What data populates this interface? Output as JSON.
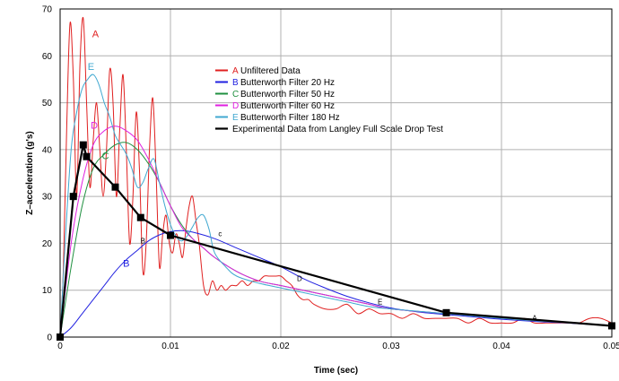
{
  "chart_data": {
    "type": "line",
    "xlabel": "Time (sec)",
    "ylabel": "Z–acceleration (g's)",
    "xlim": [
      0,
      0.05
    ],
    "ylim": [
      0,
      70
    ],
    "x_ticks": [
      "0",
      "0.01",
      "0.02",
      "0.03",
      "0.04",
      "0.05"
    ],
    "y_ticks": [
      "0",
      "10",
      "20",
      "30",
      "40",
      "50",
      "60",
      "70"
    ],
    "grid": true,
    "legend_position": "top-center",
    "series": [
      {
        "letter": "A",
        "name": "Unfiltered Data",
        "color": "#e02020",
        "width": 1,
        "x": [
          0,
          0.0003,
          0.0006,
          0.0009,
          0.0012,
          0.0015,
          0.0018,
          0.0021,
          0.0024,
          0.0027,
          0.003,
          0.0033,
          0.0036,
          0.0039,
          0.0042,
          0.0045,
          0.0048,
          0.0051,
          0.0054,
          0.0057,
          0.006,
          0.0063,
          0.0066,
          0.0069,
          0.0072,
          0.0075,
          0.0078,
          0.0081,
          0.0084,
          0.0087,
          0.009,
          0.0093,
          0.0096,
          0.0099,
          0.0102,
          0.0105,
          0.0108,
          0.0111,
          0.0114,
          0.0117,
          0.012,
          0.0123,
          0.0126,
          0.013,
          0.0134,
          0.0138,
          0.0142,
          0.0146,
          0.015,
          0.0155,
          0.016,
          0.0165,
          0.017,
          0.0175,
          0.018,
          0.0185,
          0.019,
          0.0195,
          0.02,
          0.0205,
          0.021,
          0.0215,
          0.022,
          0.0225,
          0.023,
          0.024,
          0.025,
          0.026,
          0.027,
          0.028,
          0.029,
          0.03,
          0.031,
          0.032,
          0.033,
          0.034,
          0.035,
          0.036,
          0.037,
          0.038,
          0.039,
          0.04,
          0.041,
          0.042,
          0.043,
          0.044,
          0.045,
          0.046,
          0.047,
          0.048,
          0.049,
          0.05
        ],
        "y": [
          0,
          15,
          45,
          67,
          55,
          30,
          58,
          68,
          50,
          32,
          42,
          50,
          40,
          30,
          40,
          57,
          50,
          30,
          44,
          56,
          40,
          20,
          30,
          48,
          35,
          14,
          20,
          40,
          51,
          35,
          15,
          22,
          26,
          20,
          18,
          22,
          20,
          17,
          23,
          28,
          30,
          25,
          20,
          11,
          9,
          12,
          10,
          11,
          10,
          11,
          11,
          12,
          11,
          12,
          12,
          13,
          13,
          13,
          13,
          12,
          11,
          9,
          8,
          8,
          7,
          6,
          6,
          7,
          5,
          6,
          5,
          5,
          4,
          5,
          4,
          4,
          4,
          4,
          3,
          4,
          3,
          3,
          3,
          4,
          3,
          3,
          3,
          3,
          3,
          4,
          4,
          3
        ],
        "label_points": [
          [
            0.0032,
            64
          ],
          [
            0.043,
            3.5
          ]
        ]
      },
      {
        "letter": "B",
        "name": "Butterworth Filter 20 Hz",
        "color": "#2020e0",
        "width": 1,
        "x": [
          0,
          0.001,
          0.002,
          0.003,
          0.004,
          0.005,
          0.006,
          0.007,
          0.008,
          0.009,
          0.01,
          0.011,
          0.012,
          0.014,
          0.016,
          0.018,
          0.02,
          0.022,
          0.024,
          0.026,
          0.028,
          0.03,
          0.032,
          0.034,
          0.036,
          0.038,
          0.04,
          0.042,
          0.044,
          0.046,
          0.048,
          0.05
        ],
        "y": [
          0,
          2,
          5,
          8,
          11,
          14,
          16.5,
          18.5,
          20.5,
          21.8,
          22.5,
          22.7,
          22.4,
          21,
          19,
          17,
          15,
          12.5,
          10.5,
          8.7,
          7.3,
          6.2,
          5.5,
          5,
          4.6,
          4.2,
          3.8,
          3.5,
          3.2,
          3,
          2.7,
          2.5
        ],
        "label_points": [
          [
            0.006,
            15
          ],
          [
            0.0075,
            20
          ]
        ]
      },
      {
        "letter": "C",
        "name": "Butterworth Filter 50 Hz",
        "color": "#209040",
        "width": 1,
        "x": [
          0,
          0.001,
          0.002,
          0.003,
          0.004,
          0.005,
          0.006,
          0.007,
          0.008,
          0.009,
          0.01,
          0.011,
          0.012,
          0.013,
          0.014,
          0.016,
          0.018,
          0.02,
          0.022,
          0.024,
          0.026,
          0.028,
          0.03,
          0.035,
          0.04,
          0.045,
          0.05
        ],
        "y": [
          0,
          15,
          28,
          36,
          39,
          41,
          41.5,
          40,
          37,
          33,
          28,
          24,
          21,
          19,
          17,
          14,
          12,
          11,
          10,
          9,
          8,
          7,
          6,
          5,
          4,
          3.2,
          2.5
        ],
        "label_points": [
          [
            0.0041,
            38
          ],
          [
            0.0145,
            21.5
          ]
        ]
      },
      {
        "letter": "D",
        "name": "Butterworth Filter 60 Hz",
        "color": "#e020e0",
        "width": 1,
        "x": [
          0,
          0.001,
          0.002,
          0.003,
          0.004,
          0.005,
          0.006,
          0.007,
          0.008,
          0.009,
          0.01,
          0.011,
          0.012,
          0.013,
          0.014,
          0.016,
          0.018,
          0.02,
          0.022,
          0.024,
          0.026,
          0.028,
          0.03,
          0.035,
          0.04,
          0.045,
          0.05
        ],
        "y": [
          0,
          20,
          33,
          41,
          44,
          45,
          44,
          42,
          38,
          33,
          28,
          23.5,
          21,
          19,
          17,
          14,
          12,
          11,
          10,
          9,
          8,
          7,
          6,
          5,
          4,
          3.2,
          2.5
        ],
        "label_points": [
          [
            0.0031,
            44.5
          ],
          [
            0.0217,
            12
          ]
        ]
      },
      {
        "letter": "E",
        "name": "Butterworth Filter 180 Hz",
        "color": "#40a8d0",
        "width": 1,
        "x": [
          0,
          0.0005,
          0.001,
          0.0015,
          0.002,
          0.0025,
          0.003,
          0.0035,
          0.004,
          0.0045,
          0.005,
          0.0055,
          0.006,
          0.0065,
          0.007,
          0.0075,
          0.008,
          0.0085,
          0.009,
          0.0095,
          0.01,
          0.0105,
          0.011,
          0.0115,
          0.012,
          0.0125,
          0.013,
          0.0135,
          0.014,
          0.015,
          0.016,
          0.018,
          0.02,
          0.022,
          0.024,
          0.026,
          0.028,
          0.03,
          0.035,
          0.04,
          0.045,
          0.05
        ],
        "y": [
          0,
          22,
          40,
          48,
          53,
          55,
          56,
          54,
          50,
          47,
          43,
          41,
          39,
          36,
          32,
          33,
          36,
          38,
          33,
          28,
          24,
          21.5,
          20.5,
          21.5,
          23.5,
          25.5,
          26,
          23,
          18,
          15,
          13,
          11.5,
          10.5,
          9.5,
          8.5,
          7.5,
          6.5,
          6,
          5,
          4,
          3.2,
          2.5
        ],
        "label_points": [
          [
            0.0028,
            57
          ],
          [
            0.029,
            7
          ]
        ]
      },
      {
        "letter": "",
        "name": "Experimental Data from Langley Full Scale Drop Test",
        "color": "#000000",
        "width": 2.2,
        "markers": true,
        "x": [
          0,
          0.0012,
          0.0021,
          0.0024,
          0.005,
          0.0073,
          0.01,
          0.035,
          0.05
        ],
        "y": [
          0,
          30,
          41,
          38.5,
          32,
          25.5,
          21.7,
          5.2,
          2.4
        ],
        "label_points": []
      }
    ]
  }
}
